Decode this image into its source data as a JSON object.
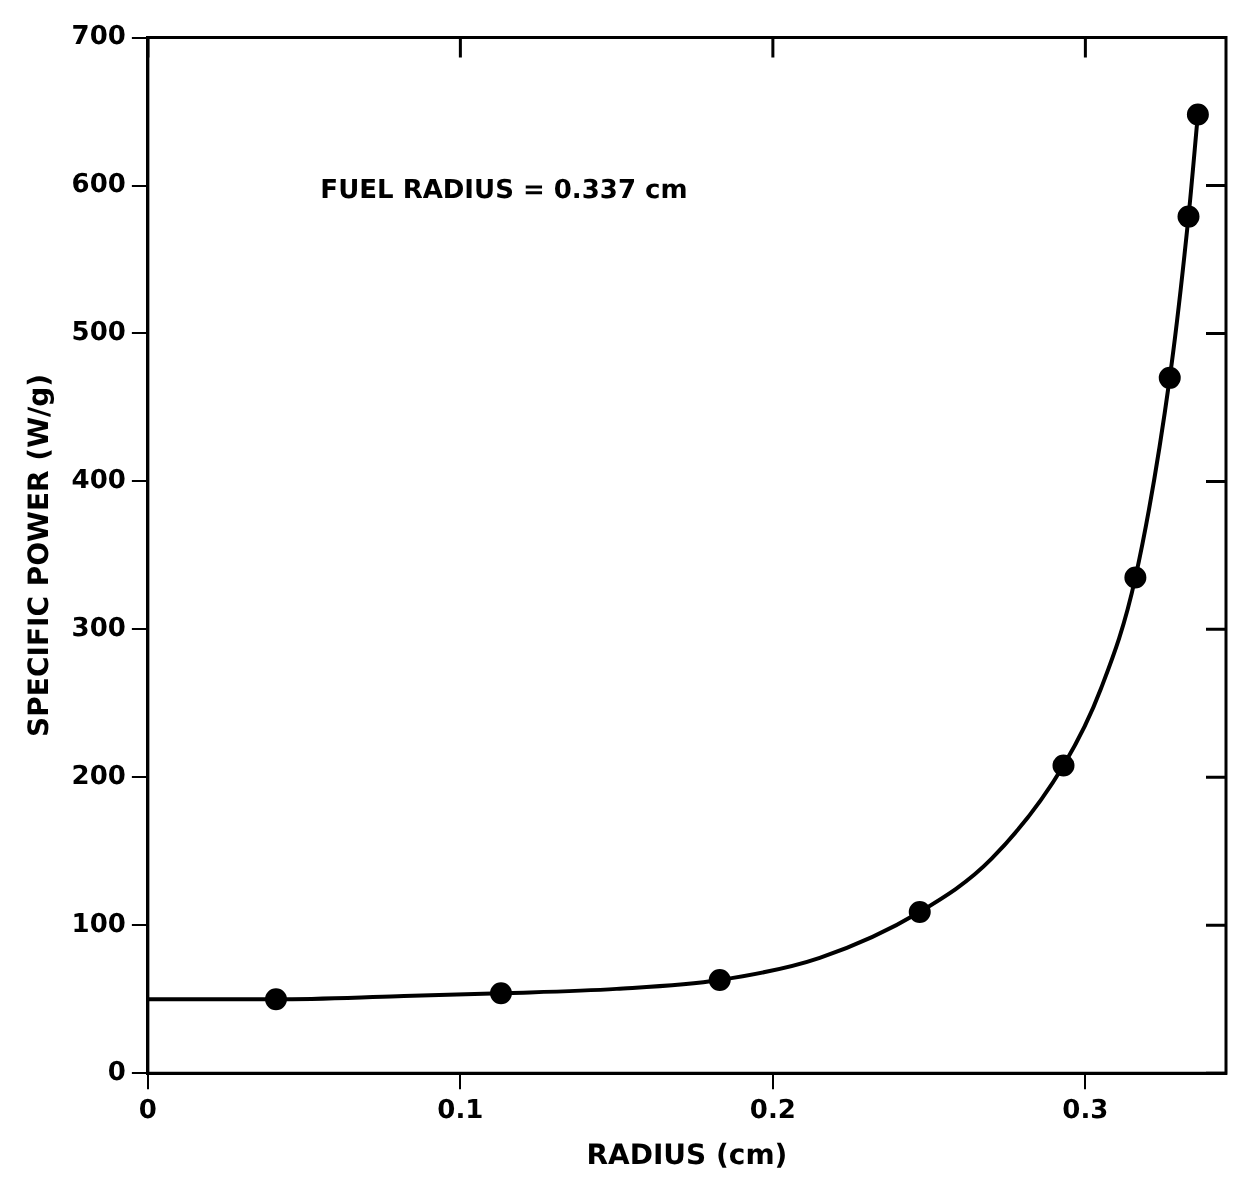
{
  "chart_data": {
    "type": "scatter",
    "xlabel": "RADIUS (cm)",
    "ylabel": "SPECIFIC POWER (W/g)",
    "annotations": [
      "FUEL RADIUS = 0.337 cm"
    ],
    "x": [
      0.041,
      0.113,
      0.183,
      0.247,
      0.293,
      0.316,
      0.327,
      0.333,
      0.336
    ],
    "series": [
      {
        "color": "#000000",
        "marker": "circle",
        "values": [
          50,
          54,
          63,
          109,
          208,
          335,
          470,
          579,
          648
        ]
      },
      {
        "type": "line",
        "color": "#000000",
        "marker": "none",
        "x": [
          0,
          0.041,
          0.08,
          0.113,
          0.15,
          0.183,
          0.215,
          0.247,
          0.27,
          0.293,
          0.305,
          0.316,
          0.327,
          0.333,
          0.336
        ],
        "values": [
          50,
          50,
          52,
          54,
          57,
          63,
          78,
          109,
          145,
          208,
          260,
          335,
          470,
          579,
          648
        ]
      }
    ],
    "xlim": [
      0,
      0.345
    ],
    "xticks": [
      0,
      0.1,
      0.2,
      0.3
    ],
    "ylim": [
      0,
      700
    ],
    "yticks": [
      0,
      100,
      200,
      300,
      400,
      500,
      600,
      700
    ],
    "grid": false,
    "legend": false
  }
}
